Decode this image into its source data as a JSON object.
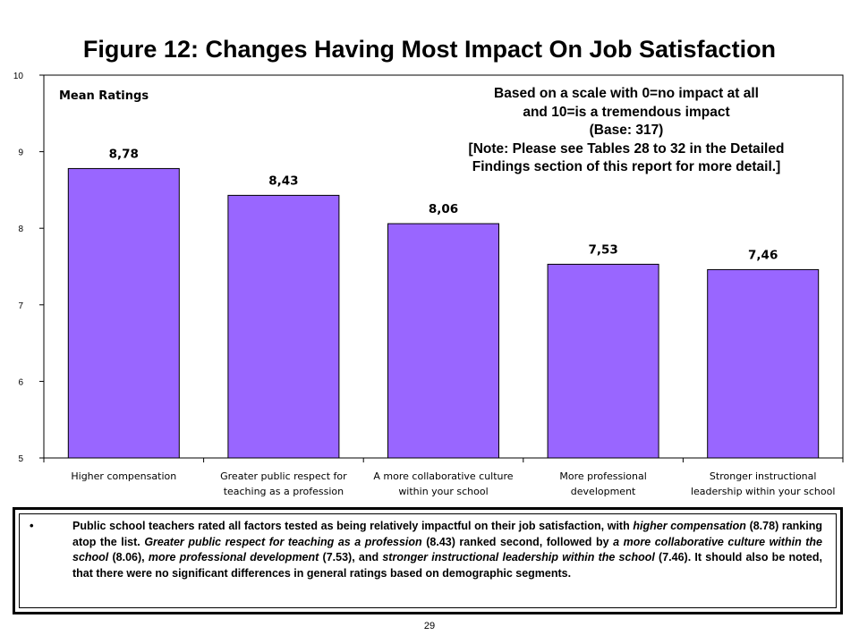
{
  "figure_title": "Figure 12:  Changes Having Most Impact On Job Satisfaction",
  "note_lines": [
    "Based on a scale with 0=no impact at all",
    "and 10=is a tremendous impact",
    "(Base: 317)",
    "[Note: Please see Tables 28 to 32 in the Detailed",
    "Findings section of this report for more detail.]"
  ],
  "chart_data": {
    "type": "bar",
    "ylabel": "Mean Ratings",
    "ylim": [
      5,
      10
    ],
    "yticks": [
      "5",
      "6",
      "7",
      "8",
      "9",
      "10"
    ],
    "grid": false,
    "categories": [
      [
        "Higher compensation"
      ],
      [
        "Greater public respect for",
        "teaching as a profession"
      ],
      [
        "A more collaborative culture",
        "within your school"
      ],
      [
        "More professional",
        "development"
      ],
      [
        "Stronger instructional",
        "leadership within your school"
      ]
    ],
    "values": [
      8.78,
      8.43,
      8.06,
      7.53,
      7.46
    ],
    "data_labels": [
      "8,78",
      "8,43",
      "8,06",
      "7,53",
      "7,46"
    ],
    "bar_color": "#9966FF"
  },
  "summary": {
    "bullet": "•",
    "segments": [
      {
        "text": "Public school teachers rated all factors tested as being relatively impactful on their job satisfaction, with ",
        "italic": false
      },
      {
        "text": "higher compensation",
        "italic": true
      },
      {
        "text": " (8.78) ranking atop the list.  ",
        "italic": false
      },
      {
        "text": "Greater public respect for teaching as a profession",
        "italic": true
      },
      {
        "text": " (8.43) ranked second, followed by ",
        "italic": false
      },
      {
        "text": "a more collaborative culture within the school",
        "italic": true
      },
      {
        "text": " (8.06), ",
        "italic": false
      },
      {
        "text": "more professional development",
        "italic": true
      },
      {
        "text": " (7.53), and ",
        "italic": false
      },
      {
        "text": "stronger instructional leadership within the school",
        "italic": true
      },
      {
        "text": " (7.46).  It should also be noted, that there were no significant differences in general ratings based on demographic segments.",
        "italic": false
      }
    ]
  },
  "page_number": "29"
}
